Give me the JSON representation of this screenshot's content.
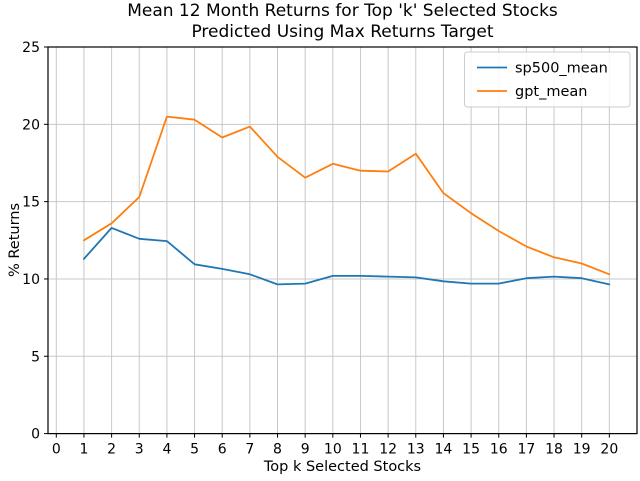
{
  "chart_data": {
    "type": "line",
    "title_lines": [
      "Mean 12 Month Returns for Top 'k' Selected Stocks",
      "Predicted Using Max Returns Target"
    ],
    "xlabel": "Top k Selected Stocks",
    "ylabel": "% Returns",
    "x": [
      1,
      2,
      3,
      4,
      5,
      6,
      7,
      8,
      9,
      10,
      11,
      12,
      13,
      14,
      15,
      16,
      17,
      18,
      19,
      20
    ],
    "series": [
      {
        "name": "sp500_mean",
        "color": "#1f77b4",
        "values": [
          11.3,
          13.3,
          12.6,
          12.45,
          10.95,
          10.65,
          10.3,
          9.65,
          9.7,
          10.2,
          10.2,
          10.15,
          10.1,
          9.85,
          9.7,
          9.7,
          10.05,
          10.15,
          10.05,
          9.65
        ]
      },
      {
        "name": "gpt_mean",
        "color": "#ff7f0e",
        "values": [
          12.5,
          13.6,
          15.3,
          20.5,
          20.3,
          19.15,
          19.85,
          17.9,
          16.55,
          17.45,
          17.0,
          16.95,
          18.1,
          15.55,
          14.25,
          13.1,
          12.1,
          11.4,
          11.0,
          10.3
        ]
      }
    ],
    "x_ticks": [
      0,
      1,
      2,
      3,
      4,
      5,
      6,
      7,
      8,
      9,
      10,
      11,
      12,
      13,
      14,
      15,
      16,
      17,
      18,
      19,
      20
    ],
    "y_ticks": [
      0,
      5,
      10,
      15,
      20,
      25
    ],
    "xlim": [
      -0.3,
      21
    ],
    "ylim": [
      0,
      25
    ],
    "grid": true,
    "legend_position": "upper-right",
    "colors": {
      "grid": "#c8c8c8",
      "spine": "#000000",
      "text": "#000000",
      "background": "#ffffff"
    }
  }
}
